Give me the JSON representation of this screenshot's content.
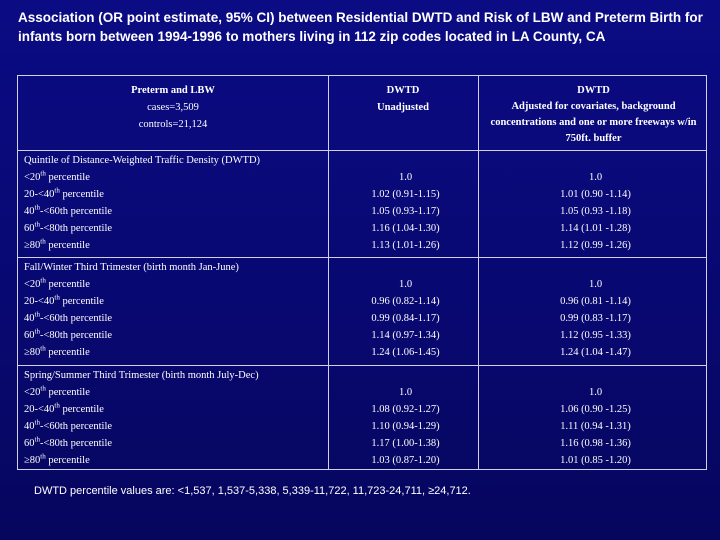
{
  "title": "Association (OR point estimate, 95% CI) between Residential DWTD and Risk of LBW and Preterm Birth for infants born between 1994-1996 to mothers living in 112 zip codes located in LA County, CA",
  "header": {
    "col0": {
      "line1": "Preterm and LBW",
      "line2": "cases=3,509",
      "line3": "controls=21,124"
    },
    "col1": {
      "line1": "DWTD",
      "line2": "Unadjusted"
    },
    "col2": {
      "line1": "DWTD",
      "line2": "Adjusted for covariates, background concentrations and one or more freeways w/in 750ft. buffer"
    }
  },
  "groups": [
    {
      "title": "Quintile of Distance-Weighted Traffic Density (DWTD)",
      "rows": [
        {
          "pre": "<20",
          "sup": "th",
          "post": " percentile",
          "unadj": "1.0",
          "adj": "1.0"
        },
        {
          "pre": "20-<40",
          "sup": "th",
          "post": " percentile",
          "unadj": "1.02 (0.91-1.15)",
          "adj": "1.01 (0.90 -1.14)"
        },
        {
          "pre": "40",
          "sup": "th",
          "post": "-<60th percentile",
          "unadj": "1.05 (0.93-1.17)",
          "adj": "1.05 (0.93 -1.18)"
        },
        {
          "pre": "60",
          "sup": "th",
          "post": "-<80th percentile",
          "unadj": "1.16 (1.04-1.30)",
          "adj": "1.14 (1.01 -1.28)"
        },
        {
          "pre": "≥80",
          "sup": "th",
          "post": " percentile",
          "unadj": "1.13 (1.01-1.26)",
          "adj": "1.12 (0.99 -1.26)"
        }
      ]
    },
    {
      "title": "Fall/Winter Third Trimester (birth month Jan-June)",
      "rows": [
        {
          "pre": "<20",
          "sup": "th",
          "post": " percentile",
          "unadj": "1.0",
          "adj": "1.0"
        },
        {
          "pre": "20-<40",
          "sup": "th",
          "post": " percentile",
          "unadj": "0.96 (0.82-1.14)",
          "adj": "0.96 (0.81 -1.14)"
        },
        {
          "pre": "40",
          "sup": "th",
          "post": "-<60th percentile",
          "unadj": "0.99 (0.84-1.17)",
          "adj": "0.99 (0.83 -1.17)"
        },
        {
          "pre": "60",
          "sup": "th",
          "post": "-<80th percentile",
          "unadj": "1.14 (0.97-1.34)",
          "adj": "1.12 (0.95 -1.33)"
        },
        {
          "pre": "≥80",
          "sup": "th",
          "post": " percentile",
          "unadj": "1.24 (1.06-1.45)",
          "adj": "1.24 (1.04 -1.47)"
        }
      ]
    },
    {
      "title": "Spring/Summer Third Trimester (birth month July-Dec)",
      "rows": [
        {
          "pre": "<20",
          "sup": "th",
          "post": " percentile",
          "unadj": "1.0",
          "adj": "1.0"
        },
        {
          "pre": "20-<40",
          "sup": "th",
          "post": " percentile",
          "unadj": "1.08 (0.92-1.27)",
          "adj": "1.06 (0.90 -1.25)"
        },
        {
          "pre": "40",
          "sup": "th",
          "post": "-<60th percentile",
          "unadj": "1.10 (0.94-1.29)",
          "adj": "1.11 (0.94 -1.31)"
        },
        {
          "pre": "60",
          "sup": "th",
          "post": "-<80th percentile",
          "unadj": "1.17 (1.00-1.38)",
          "adj": "1.16 (0.98 -1.36)"
        },
        {
          "pre": "≥80",
          "sup": "th",
          "post": " percentile",
          "unadj": "1.03 (0.87-1.20)",
          "adj": "1.01 (0.85 -1.20)"
        }
      ]
    }
  ],
  "footnote": "DWTD percentile values are: <1,537, 1,537-5,338, 5,339-11,722, 11,723-24,711, ≥24,712.",
  "colors": {
    "background": "#0a0a78",
    "text": "#ffffff",
    "rule": "#d0d0e8"
  }
}
